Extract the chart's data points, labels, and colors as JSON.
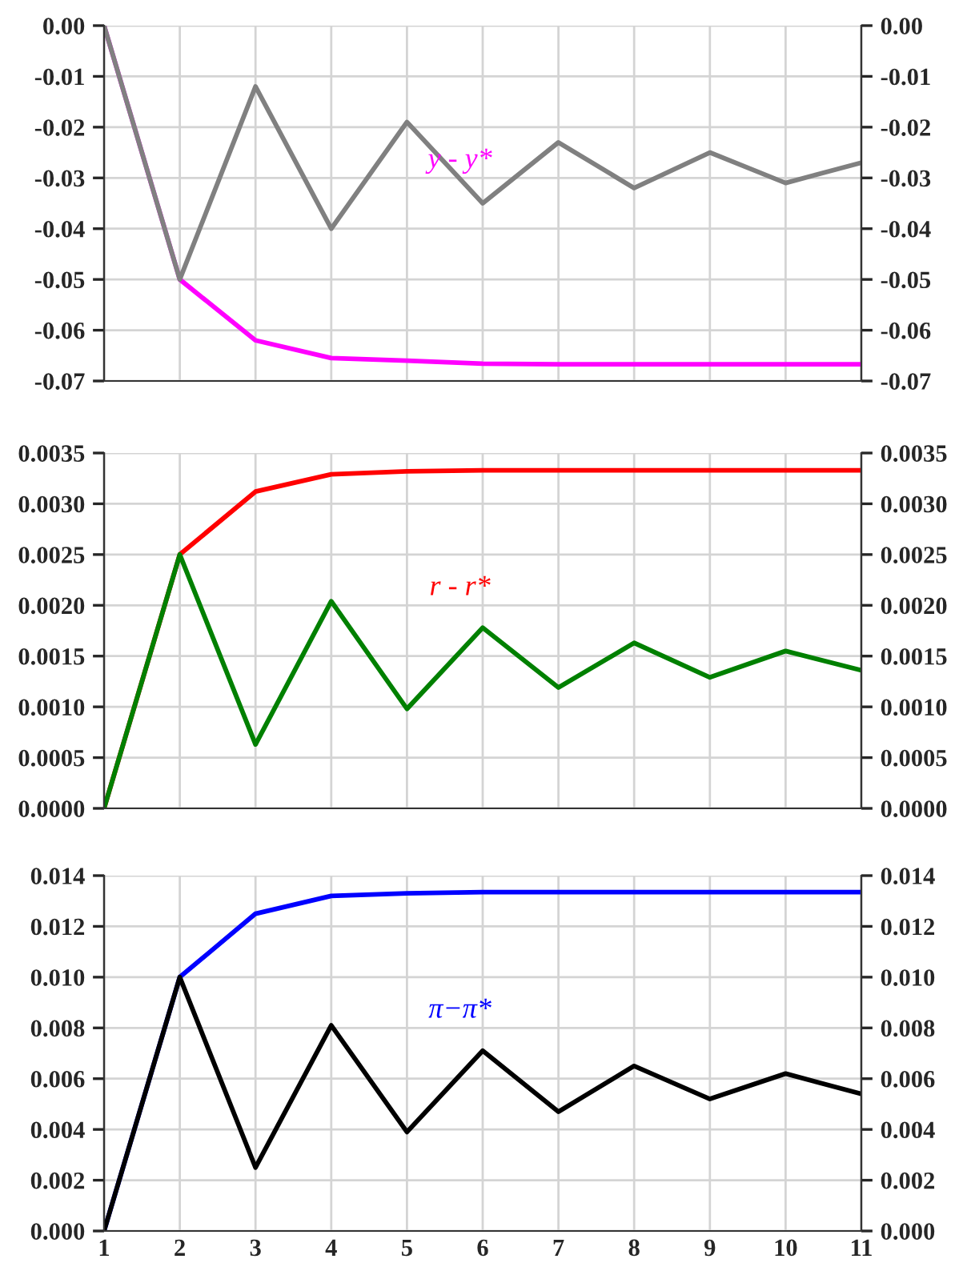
{
  "chart_data": [
    {
      "type": "line",
      "x": [
        1,
        2,
        3,
        4,
        5,
        6,
        7,
        8,
        9,
        10,
        11
      ],
      "xlim": [
        1,
        11
      ],
      "xticks": [
        1,
        2,
        3,
        4,
        5,
        6,
        7,
        8,
        9,
        10,
        11
      ],
      "tick_labels": "y",
      "grid": true,
      "legend": false,
      "ylim": [
        -0.07,
        0
      ],
      "yticks": [
        {
          "value": 0,
          "label": "0.00"
        },
        {
          "value": -0.01,
          "label": "-0.01"
        },
        {
          "value": -0.02,
          "label": "-0.02"
        },
        {
          "value": -0.03,
          "label": "-0.03"
        },
        {
          "value": -0.04,
          "label": "-0.04"
        },
        {
          "value": -0.05,
          "label": "-0.05"
        },
        {
          "value": -0.06,
          "label": "-0.06"
        },
        {
          "value": -0.07,
          "label": "-0.07"
        }
      ],
      "y2lim": [
        -0.07,
        0
      ],
      "y2ticks": [
        {
          "value": 0,
          "label": "0.00"
        },
        {
          "value": -0.01,
          "label": "-0.01"
        },
        {
          "value": -0.02,
          "label": "-0.02"
        },
        {
          "value": -0.03,
          "label": "-0.03"
        },
        {
          "value": -0.04,
          "label": "-0.04"
        },
        {
          "value": -0.05,
          "label": "-0.05"
        },
        {
          "value": -0.06,
          "label": "-0.06"
        },
        {
          "value": -0.07,
          "label": "-0.07"
        }
      ],
      "annotations": [
        "y - y*"
      ],
      "series": [
        {
          "color": "#ff00ff",
          "values": [
            0,
            -0.05,
            -0.062,
            -0.0655,
            -0.066,
            -0.0666,
            -0.0667,
            -0.0667,
            -0.0667,
            -0.0667,
            -0.0667
          ]
        },
        {
          "color": "#808080",
          "values": [
            0,
            -0.05,
            -0.012,
            -0.04,
            -0.019,
            -0.035,
            -0.023,
            -0.032,
            -0.025,
            -0.031,
            -0.027
          ]
        }
      ]
    },
    {
      "type": "line",
      "x": [
        1,
        2,
        3,
        4,
        5,
        6,
        7,
        8,
        9,
        10,
        11
      ],
      "xlim": [
        1,
        11
      ],
      "xticks": [
        1,
        2,
        3,
        4,
        5,
        6,
        7,
        8,
        9,
        10,
        11
      ],
      "tick_labels": "y",
      "grid": true,
      "legend": false,
      "ylim": [
        0,
        0.0035
      ],
      "yticks": [
        {
          "value": 0,
          "label": "0.0000"
        },
        {
          "value": 0.0005,
          "label": "0.0005"
        },
        {
          "value": 0.001,
          "label": "0.0010"
        },
        {
          "value": 0.0015,
          "label": "0.0015"
        },
        {
          "value": 0.002,
          "label": "0.0020"
        },
        {
          "value": 0.0025,
          "label": "0.0025"
        },
        {
          "value": 0.003,
          "label": "0.0030"
        },
        {
          "value": 0.0035,
          "label": "0.0035"
        }
      ],
      "y2lim": [
        0,
        0.0035
      ],
      "y2ticks": [
        {
          "value": 0,
          "label": "0.0000"
        },
        {
          "value": 0.0005,
          "label": "0.0005"
        },
        {
          "value": 0.001,
          "label": "0.0010"
        },
        {
          "value": 0.0015,
          "label": "0.0015"
        },
        {
          "value": 0.002,
          "label": "0.0020"
        },
        {
          "value": 0.0025,
          "label": "0.0025"
        },
        {
          "value": 0.003,
          "label": "0.0030"
        },
        {
          "value": 0.0035,
          "label": "0.0035"
        }
      ],
      "annotations": [
        "r - r*"
      ],
      "series": [
        {
          "color": "#ff0000",
          "values": [
            0,
            0.0025,
            0.00312,
            0.00329,
            0.00332,
            0.00333,
            0.00333,
            0.00333,
            0.00333,
            0.00333,
            0.00333
          ]
        },
        {
          "color": "#008000",
          "values": [
            0,
            0.0025,
            0.00063,
            0.00204,
            0.00098,
            0.00178,
            0.00119,
            0.00163,
            0.00129,
            0.00155,
            0.00136
          ]
        }
      ]
    },
    {
      "type": "line",
      "x": [
        1,
        2,
        3,
        4,
        5,
        6,
        7,
        8,
        9,
        10,
        11
      ],
      "xlim": [
        1,
        11
      ],
      "xticks": [
        1,
        2,
        3,
        4,
        5,
        6,
        7,
        8,
        9,
        10,
        11
      ],
      "grid": true,
      "legend": false,
      "ylim": [
        0,
        0.014
      ],
      "yticks": [
        {
          "value": 0,
          "label": "0.000"
        },
        {
          "value": 0.002,
          "label": "0.002"
        },
        {
          "value": 0.004,
          "label": "0.004"
        },
        {
          "value": 0.006,
          "label": "0.006"
        },
        {
          "value": 0.008,
          "label": "0.008"
        },
        {
          "value": 0.01,
          "label": "0.010"
        },
        {
          "value": 0.012,
          "label": "0.012"
        },
        {
          "value": 0.014,
          "label": "0.014"
        }
      ],
      "y2lim": [
        0,
        0.014
      ],
      "y2ticks": [
        {
          "value": 0,
          "label": "0.000"
        },
        {
          "value": 0.002,
          "label": "0.002"
        },
        {
          "value": 0.004,
          "label": "0.004"
        },
        {
          "value": 0.006,
          "label": "0.006"
        },
        {
          "value": 0.008,
          "label": "0.008"
        },
        {
          "value": 0.01,
          "label": "0.010"
        },
        {
          "value": 0.012,
          "label": "0.012"
        },
        {
          "value": 0.014,
          "label": "0.014"
        }
      ],
      "annotations": [
        "π−π*"
      ],
      "series": [
        {
          "color": "#0000ff",
          "values": [
            0,
            0.01,
            0.0125,
            0.0132,
            0.0133,
            0.01335,
            0.01335,
            0.01335,
            0.01335,
            0.01335,
            0.01335
          ]
        },
        {
          "color": "#000000",
          "values": [
            0,
            0.01,
            0.0025,
            0.0081,
            0.0039,
            0.0071,
            0.0047,
            0.0065,
            0.0052,
            0.0062,
            0.0054
          ]
        }
      ]
    }
  ]
}
